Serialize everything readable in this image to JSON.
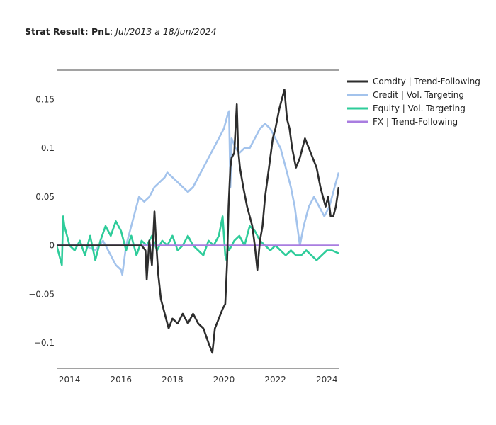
{
  "title": {
    "bold": "Strat Result: PnL",
    "sep": ": ",
    "italic": "Jul/2013 a 18/Jun/2024"
  },
  "chart_data": {
    "type": "line",
    "title": "Strat Result: PnL: Jul/2013 a 18/Jun/2024",
    "xlabel": "",
    "ylabel": "",
    "xlim": [
      2013.5,
      2024.46
    ],
    "ylim": [
      -0.126,
      0.18
    ],
    "x_ticks": [
      2014,
      2016,
      2018,
      2020,
      2022,
      2024
    ],
    "x_tick_labels": [
      "2014",
      "2016",
      "2018",
      "2020",
      "2022",
      "2024"
    ],
    "y_ticks": [
      -0.1,
      -0.05,
      0,
      0.05,
      0.1,
      0.15
    ],
    "y_tick_labels": [
      "−0.1",
      "−0.05",
      "0",
      "0.05",
      "0.1",
      "0.15"
    ],
    "grid": false,
    "legend_position": "top-right",
    "series": [
      {
        "name": "Comdty | Trend-Following",
        "color": "#2d2d2d",
        "x": [
          2013.5,
          2015.0,
          2016.8,
          2016.95,
          2017.0,
          2017.1,
          2017.2,
          2017.3,
          2017.35,
          2017.45,
          2017.55,
          2017.7,
          2017.85,
          2018.0,
          2018.2,
          2018.4,
          2018.6,
          2018.8,
          2019.0,
          2019.2,
          2019.4,
          2019.55,
          2019.65,
          2019.8,
          2019.95,
          2020.05,
          2020.12,
          2020.18,
          2020.25,
          2020.3,
          2020.4,
          2020.5,
          2020.55,
          2020.62,
          2020.75,
          2020.9,
          2021.0,
          2021.1,
          2021.2,
          2021.3,
          2021.4,
          2021.5,
          2021.6,
          2021.75,
          2021.9,
          2022.0,
          2022.15,
          2022.25,
          2022.35,
          2022.45,
          2022.55,
          2022.65,
          2022.8,
          2022.95,
          2023.05,
          2023.15,
          2023.3,
          2023.45,
          2023.6,
          2023.75,
          2023.85,
          2023.95,
          2024.05,
          2024.15,
          2024.25,
          2024.35,
          2024.46
        ],
        "values": [
          0.0,
          0.0,
          0.0,
          -0.005,
          -0.035,
          0.005,
          -0.02,
          0.035,
          0.01,
          -0.03,
          -0.055,
          -0.07,
          -0.085,
          -0.075,
          -0.08,
          -0.07,
          -0.08,
          -0.07,
          -0.08,
          -0.085,
          -0.1,
          -0.11,
          -0.085,
          -0.075,
          -0.065,
          -0.06,
          -0.02,
          0.04,
          0.08,
          0.09,
          0.095,
          0.145,
          0.1,
          0.08,
          0.06,
          0.04,
          0.03,
          0.02,
          0.0,
          -0.025,
          0.005,
          0.02,
          0.05,
          0.08,
          0.11,
          0.12,
          0.14,
          0.15,
          0.16,
          0.13,
          0.12,
          0.1,
          0.08,
          0.09,
          0.1,
          0.11,
          0.1,
          0.09,
          0.08,
          0.06,
          0.05,
          0.04,
          0.05,
          0.03,
          0.03,
          0.04,
          0.06
        ]
      },
      {
        "name": "Credit | Vol. Targeting",
        "color": "#a3c3ec",
        "x": [
          2013.5,
          2014.2,
          2014.6,
          2015.0,
          2015.3,
          2015.6,
          2015.8,
          2016.0,
          2016.05,
          2016.2,
          2016.4,
          2016.5,
          2016.7,
          2016.9,
          2017.1,
          2017.3,
          2017.5,
          2017.7,
          2017.8,
          2018.0,
          2018.2,
          2018.4,
          2018.6,
          2018.8,
          2019.0,
          2019.2,
          2019.4,
          2019.6,
          2019.8,
          2020.0,
          2020.1,
          2020.15,
          2020.2,
          2020.25,
          2020.3,
          2020.45,
          2020.6,
          2020.8,
          2021.0,
          2021.2,
          2021.4,
          2021.6,
          2021.8,
          2022.0,
          2022.2,
          2022.4,
          2022.6,
          2022.75,
          2022.85,
          2022.95,
          2023.1,
          2023.3,
          2023.5,
          2023.7,
          2023.9,
          2024.1,
          2024.3,
          2024.46
        ],
        "values": [
          0.0,
          0.0,
          0.0,
          -0.005,
          0.005,
          -0.01,
          -0.02,
          -0.025,
          -0.03,
          0.0,
          0.02,
          0.03,
          0.05,
          0.045,
          0.05,
          0.06,
          0.065,
          0.07,
          0.075,
          0.07,
          0.065,
          0.06,
          0.055,
          0.06,
          0.07,
          0.08,
          0.09,
          0.1,
          0.11,
          0.12,
          0.13,
          0.135,
          0.138,
          0.06,
          0.11,
          0.1,
          0.095,
          0.1,
          0.1,
          0.11,
          0.12,
          0.125,
          0.12,
          0.11,
          0.1,
          0.08,
          0.06,
          0.04,
          0.02,
          0.0,
          0.02,
          0.04,
          0.05,
          0.04,
          0.03,
          0.04,
          0.06,
          0.075
        ]
      },
      {
        "name": "Equity | Vol. Targeting",
        "color": "#2ecc9a",
        "x": [
          2013.5,
          2013.7,
          2013.75,
          2013.8,
          2014.0,
          2014.2,
          2014.4,
          2014.6,
          2014.8,
          2015.0,
          2015.2,
          2015.4,
          2015.6,
          2015.8,
          2016.0,
          2016.2,
          2016.4,
          2016.6,
          2016.8,
          2017.0,
          2017.2,
          2017.4,
          2017.6,
          2017.8,
          2018.0,
          2018.2,
          2018.4,
          2018.6,
          2018.8,
          2019.0,
          2019.2,
          2019.4,
          2019.6,
          2019.8,
          2019.95,
          2020.05,
          2020.1,
          2020.15,
          2020.2,
          2020.4,
          2020.6,
          2020.8,
          2021.0,
          2021.2,
          2021.4,
          2021.6,
          2021.8,
          2022.0,
          2022.2,
          2022.4,
          2022.6,
          2022.8,
          2023.0,
          2023.2,
          2023.4,
          2023.6,
          2023.8,
          2024.0,
          2024.2,
          2024.46
        ],
        "values": [
          0.0,
          -0.02,
          0.03,
          0.02,
          0.0,
          -0.005,
          0.005,
          -0.01,
          0.01,
          -0.015,
          0.005,
          0.02,
          0.01,
          0.025,
          0.015,
          -0.005,
          0.01,
          -0.01,
          0.005,
          0.0,
          0.01,
          -0.005,
          0.005,
          0.0,
          0.01,
          -0.005,
          0.0,
          0.01,
          0.0,
          -0.005,
          -0.01,
          0.005,
          0.0,
          0.01,
          0.03,
          -0.01,
          -0.015,
          0.0,
          -0.005,
          0.005,
          0.01,
          0.0,
          0.02,
          0.015,
          0.005,
          0.0,
          -0.005,
          0.0,
          -0.005,
          -0.01,
          -0.005,
          -0.01,
          -0.01,
          -0.005,
          -0.01,
          -0.015,
          -0.01,
          -0.005,
          -0.005,
          -0.008
        ]
      },
      {
        "name": "FX | Trend-Following",
        "color": "#a97de0",
        "x": [
          2013.5,
          2024.46
        ],
        "values": [
          0.0,
          0.0
        ]
      }
    ]
  }
}
